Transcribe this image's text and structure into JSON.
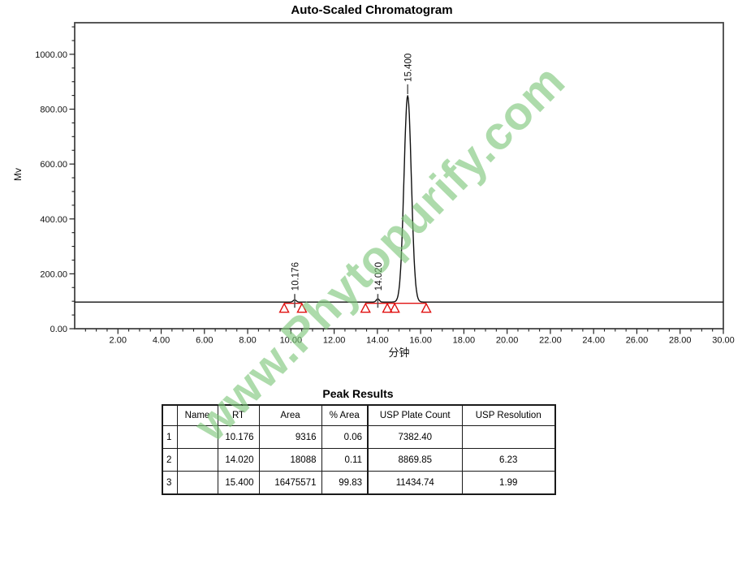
{
  "watermark": {
    "text": "www.Phytopurify.com",
    "color": "#7cc678"
  },
  "chart_data": {
    "type": "line",
    "title": "Auto-Scaled Chromatogram",
    "xlabel": "分钟",
    "ylabel": "Mv",
    "xlim": [
      0,
      30
    ],
    "ylim": [
      0,
      1115
    ],
    "x_major_ticks": [
      2,
      4,
      6,
      8,
      10,
      12,
      14,
      16,
      18,
      20,
      22,
      24,
      26,
      28,
      30
    ],
    "x_minor_step": 0.5,
    "y_major_ticks": [
      0,
      200,
      400,
      600,
      800,
      1000
    ],
    "y_minor_step": 50,
    "grid": false,
    "baseline_mv": 97,
    "trace_color": "#101010",
    "frame_color": "#454545",
    "peaks": [
      {
        "rt": 10.176,
        "label": "10.176",
        "apex_mv": 105,
        "sigma_min": 0.07
      },
      {
        "rt": 14.02,
        "label": "14.020",
        "apex_mv": 109,
        "sigma_min": 0.07
      },
      {
        "rt": 15.4,
        "label": "15.400",
        "apex_mv": 849,
        "sigma_min": 0.17
      }
    ],
    "integration": {
      "color": "#e01010",
      "baseline_segments_min": [
        [
          9.69,
          10.51
        ],
        [
          13.45,
          16.26
        ]
      ],
      "start_end_markers_min": [
        9.69,
        10.51,
        13.45,
        14.46,
        14.8,
        16.26
      ]
    }
  },
  "peak_results": {
    "title": "Peak Results",
    "columns": [
      "",
      "Name",
      "RT",
      "Area",
      "% Area",
      "USP Plate Count",
      "USP Resolution"
    ],
    "rows": [
      [
        "1",
        "",
        "10.176",
        "9316",
        "0.06",
        "7382.40",
        ""
      ],
      [
        "2",
        "",
        "14.020",
        "18088",
        "0.11",
        "8869.85",
        "6.23"
      ],
      [
        "3",
        "",
        "15.400",
        "16475571",
        "99.83",
        "11434.74",
        "1.99"
      ]
    ]
  }
}
